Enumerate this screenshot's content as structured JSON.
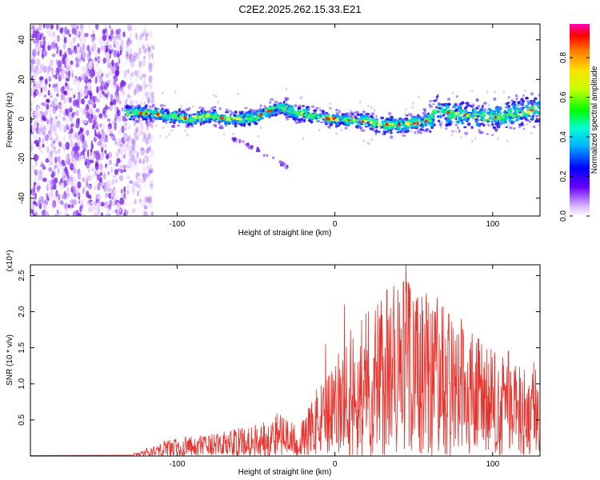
{
  "figure_title": "C2E2.2025.262.15.33.E21",
  "colors": {
    "snr_line": "#e8322c",
    "scatter_noise": "#9b4dff"
  },
  "chart_data": [
    {
      "type": "heatmap",
      "title": "C2E2.2025.262.15.33.E21",
      "xlabel": "Height of straight line (km)",
      "ylabel": "Frequency (Hz)",
      "xlim": [
        -193,
        130
      ],
      "ylim": [
        -49,
        48
      ],
      "xticks": [
        -100,
        0,
        100
      ],
      "xtick_labels": [
        "-100",
        "0",
        "100"
      ],
      "yticks": [
        40,
        20,
        0,
        -20,
        -40
      ],
      "ytick_labels": [
        "40",
        "20",
        "0",
        "-20",
        "-40"
      ],
      "colorbar": {
        "label": "Normalized spectral amplitude",
        "range": [
          0,
          0.97
        ],
        "ticks": [
          0.0,
          0.2,
          0.4,
          0.6,
          0.8
        ],
        "tick_labels": [
          "0.0",
          "0.2",
          "0.4",
          "0.6",
          "0.8"
        ],
        "colormap": "rainbow"
      },
      "signal_track": {
        "x": [
          -133,
          -120,
          -110,
          -100,
          -90,
          -80,
          -70,
          -60,
          -50,
          -40,
          -35,
          -30,
          -25,
          -20,
          -10,
          0,
          10,
          20,
          30,
          40,
          50,
          60,
          65,
          70,
          80,
          90,
          100,
          110,
          120,
          130
        ],
        "frequency": [
          3,
          3,
          2,
          1,
          0,
          2,
          0,
          0,
          1,
          5,
          6,
          5,
          3,
          3,
          1,
          0,
          -1,
          -1,
          -3,
          -3,
          -2,
          -1,
          5,
          3,
          2,
          1,
          1,
          2,
          4,
          5
        ]
      },
      "secondary_feature": {
        "x": [
          -65,
          -50,
          -40,
          -30
        ],
        "frequency": [
          -10,
          -15,
          -20,
          -24
        ]
      },
      "noise_region_x": [
        -193,
        -123
      ]
    },
    {
      "type": "line",
      "title": "",
      "xlabel": "Height of straight line (km)",
      "ylabel": "SNR (10 * v/v)",
      "y_scale_label": "(x10⁴)",
      "xlim": [
        -193,
        130
      ],
      "ylim": [
        0,
        2.65
      ],
      "xticks": [
        -100,
        0,
        100
      ],
      "xtick_labels": [
        "-100",
        "0",
        "100"
      ],
      "yticks": [
        0.5,
        1.0,
        1.5,
        2.0,
        2.5
      ],
      "ytick_labels": [
        "0.5",
        "1.0",
        "1.5",
        "2.0",
        "2.5"
      ],
      "series": [
        {
          "name": "SNR",
          "envelope_x": [
            -193,
            -130,
            -120,
            -110,
            -100,
            -90,
            -80,
            -70,
            -60,
            -50,
            -45,
            -40,
            -35,
            -30,
            -25,
            -20,
            -15,
            -10,
            -5,
            0,
            5,
            10,
            20,
            30,
            40,
            45,
            50,
            60,
            70,
            80,
            90,
            100,
            110,
            120,
            130
          ],
          "envelope_y": [
            0.01,
            0.02,
            0.1,
            0.22,
            0.25,
            0.28,
            0.3,
            0.35,
            0.4,
            0.45,
            0.5,
            0.55,
            0.7,
            0.5,
            0.45,
            0.5,
            0.8,
            1.0,
            1.1,
            1.3,
            1.6,
            1.8,
            2.1,
            2.3,
            2.4,
            2.6,
            2.3,
            2.2,
            2.1,
            1.95,
            1.7,
            1.5,
            1.35,
            1.25,
            1.2
          ],
          "peaks": [
            {
              "x": -6,
              "y": 1.55
            },
            {
              "x": 6,
              "y": 2.1
            },
            {
              "x": 33,
              "y": 2.3
            },
            {
              "x": 45,
              "y": 2.65
            },
            {
              "x": 58,
              "y": 2.25
            },
            {
              "x": 65,
              "y": 2.2
            },
            {
              "x": 80,
              "y": 1.9
            },
            {
              "x": 110,
              "y": 1.45
            },
            {
              "x": 126,
              "y": 1.3
            }
          ]
        }
      ]
    }
  ]
}
